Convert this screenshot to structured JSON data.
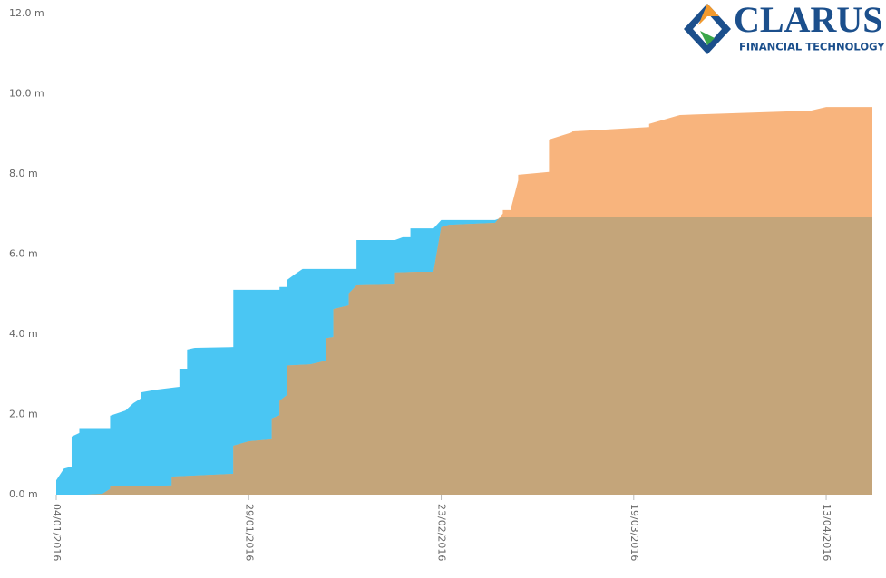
{
  "chart_data": {
    "type": "area",
    "logo": {
      "name": "CLARUS",
      "tagline": "FINANCIAL TECHNOLOGY"
    },
    "series": [
      {
        "color": "#4ac6f3",
        "x": [
          "2016-01-04",
          "2016-01-05",
          "2016-01-06",
          "2016-01-06",
          "2016-01-07",
          "2016-01-07",
          "2016-01-11",
          "2016-01-11",
          "2016-01-13",
          "2016-01-14",
          "2016-01-15",
          "2016-01-15",
          "2016-01-17",
          "2016-01-20",
          "2016-01-20",
          "2016-01-21",
          "2016-01-21",
          "2016-01-22",
          "2016-01-27",
          "2016-01-27",
          "2016-02-02",
          "2016-02-02",
          "2016-02-03",
          "2016-02-03",
          "2016-02-04",
          "2016-02-05",
          "2016-02-12",
          "2016-02-12",
          "2016-02-17",
          "2016-02-18",
          "2016-02-19",
          "2016-02-19",
          "2016-02-22",
          "2016-02-23",
          "2016-03-01",
          "2016-03-02",
          "2016-04-19"
        ],
        "values": [
          0.36,
          0.65,
          0.7,
          1.45,
          1.54,
          1.66,
          1.66,
          1.97,
          2.1,
          2.28,
          2.4,
          2.55,
          2.62,
          2.69,
          3.14,
          3.14,
          3.62,
          3.66,
          3.68,
          5.11,
          5.11,
          5.18,
          5.18,
          5.36,
          5.5,
          5.63,
          5.63,
          6.35,
          6.35,
          6.42,
          6.42,
          6.64,
          6.64,
          6.85,
          6.85,
          6.92,
          6.92
        ]
      },
      {
        "color": "#f8b47d",
        "x": [
          "2016-01-04",
          "2016-01-08",
          "2016-01-10",
          "2016-01-11",
          "2016-01-11",
          "2016-01-19",
          "2016-01-19",
          "2016-01-27",
          "2016-01-27",
          "2016-01-29",
          "2016-02-01",
          "2016-02-01",
          "2016-02-02",
          "2016-02-02",
          "2016-02-03",
          "2016-02-03",
          "2016-02-06",
          "2016-02-08",
          "2016-02-08",
          "2016-02-09",
          "2016-02-09",
          "2016-02-11",
          "2016-02-11",
          "2016-02-12",
          "2016-02-17",
          "2016-02-17",
          "2016-02-20",
          "2016-02-22",
          "2016-02-23",
          "2016-02-24",
          "2016-03-01",
          "2016-03-02",
          "2016-03-02",
          "2016-03-03",
          "2016-03-04",
          "2016-03-04",
          "2016-03-08",
          "2016-03-08",
          "2016-03-11",
          "2016-03-11",
          "2016-03-21",
          "2016-03-21",
          "2016-03-25",
          "2016-04-11",
          "2016-04-13",
          "2016-04-19"
        ],
        "values": [
          0,
          0,
          0.02,
          0.14,
          0.2,
          0.23,
          0.45,
          0.52,
          1.22,
          1.33,
          1.38,
          1.9,
          1.98,
          2.34,
          2.49,
          3.22,
          3.25,
          3.34,
          3.9,
          3.93,
          4.63,
          4.72,
          5.02,
          5.22,
          5.24,
          5.54,
          5.56,
          5.56,
          6.67,
          6.73,
          6.78,
          7.01,
          7.1,
          7.1,
          7.84,
          7.98,
          8.05,
          8.86,
          9.04,
          9.06,
          9.17,
          9.25,
          9.47,
          9.58,
          9.67,
          9.67
        ]
      }
    ],
    "overlap_color": "#c4a57a",
    "xlim": [
      "2016-01-04",
      "2016-04-19"
    ],
    "xticks": [
      {
        "value": "2016-01-04",
        "label": "04/01/2016"
      },
      {
        "value": "2016-01-29",
        "label": "29/01/2016"
      },
      {
        "value": "2016-02-23",
        "label": "23/02/2016"
      },
      {
        "value": "2016-03-19",
        "label": "19/03/2016"
      },
      {
        "value": "2016-04-13",
        "label": "13/04/2016"
      }
    ],
    "ylim": [
      0,
      12
    ],
    "yticks": [
      {
        "value": 0,
        "label": "0.0 m"
      },
      {
        "value": 2,
        "label": "2.0 m"
      },
      {
        "value": 4,
        "label": "4.0 m"
      },
      {
        "value": 6,
        "label": "6.0 m"
      },
      {
        "value": 8,
        "label": "8.0 m"
      },
      {
        "value": 10,
        "label": "10.0 m"
      },
      {
        "value": 12,
        "label": "12.0 m"
      }
    ]
  }
}
